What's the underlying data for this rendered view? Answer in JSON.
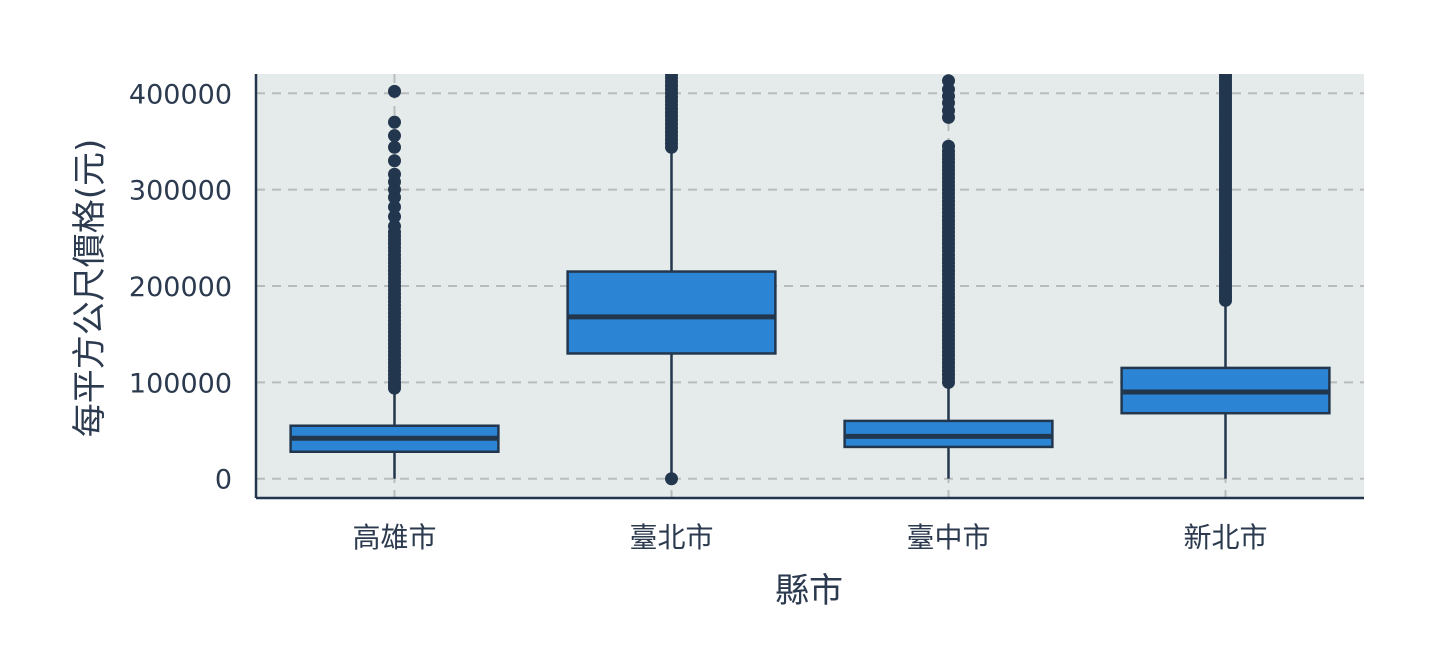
{
  "chart_data": {
    "type": "boxplot",
    "xlabel": "縣市",
    "ylabel": "每平方公尺價格(元)",
    "ylim": [
      -20000,
      420000
    ],
    "yticks": [
      0,
      100000,
      200000,
      300000,
      400000
    ],
    "grid": true,
    "colors": {
      "box": "#2c84d4",
      "line": "#22364d",
      "plot_bg": "#e5eaea",
      "grid": "#b8bcbc"
    },
    "categories": [
      "高雄市",
      "臺北市",
      "臺中市",
      "新北市"
    ],
    "boxes": [
      {
        "category": "高雄市",
        "q1": 28000,
        "median": 42000,
        "q3": 55000,
        "whisker_low": 0,
        "whisker_high": 92000,
        "outliers": [
          94000,
          97000,
          100000,
          104000,
          108000,
          112000,
          116000,
          120000,
          124000,
          128000,
          132000,
          136000,
          140000,
          144000,
          148000,
          152000,
          156000,
          160000,
          164000,
          168000,
          172000,
          176000,
          180000,
          184000,
          188000,
          192000,
          196000,
          200000,
          204000,
          208000,
          212000,
          216000,
          220000,
          224000,
          228000,
          232000,
          236000,
          240000,
          244000,
          248000,
          252000,
          256000,
          262000,
          272000,
          282000,
          292000,
          300000,
          308000,
          316000,
          330000,
          344000,
          356000,
          370000,
          402000
        ]
      },
      {
        "category": "臺北市",
        "q1": 130000,
        "median": 168000,
        "q3": 215000,
        "whisker_low": 0,
        "whisker_high": 342000,
        "outliers": [
          0,
          344000,
          348000,
          352000,
          356000,
          360000,
          364000,
          368000,
          372000,
          376000,
          380000,
          384000,
          388000,
          392000,
          396000,
          400000,
          404000,
          408000,
          412000,
          416000,
          420000
        ]
      },
      {
        "category": "臺中市",
        "q1": 33000,
        "median": 44000,
        "q3": 60000,
        "whisker_low": 0,
        "whisker_high": 98000,
        "outliers": [
          100000,
          104000,
          108000,
          112000,
          116000,
          120000,
          124000,
          128000,
          132000,
          136000,
          140000,
          144000,
          148000,
          152000,
          156000,
          160000,
          164000,
          168000,
          172000,
          176000,
          180000,
          184000,
          188000,
          192000,
          196000,
          200000,
          204000,
          208000,
          212000,
          216000,
          220000,
          224000,
          228000,
          232000,
          236000,
          240000,
          244000,
          248000,
          252000,
          256000,
          260000,
          264000,
          268000,
          272000,
          276000,
          280000,
          284000,
          288000,
          292000,
          296000,
          300000,
          304000,
          308000,
          312000,
          316000,
          320000,
          324000,
          328000,
          332000,
          336000,
          340000,
          345000,
          375000,
          382000,
          390000,
          397000,
          404000,
          413000
        ]
      },
      {
        "category": "新北市",
        "q1": 68000,
        "median": 90000,
        "q3": 115000,
        "whisker_low": 0,
        "whisker_high": 183000,
        "outliers": [
          185000,
          188000,
          191000,
          194000,
          197000,
          200000,
          203000,
          206000,
          209000,
          212000,
          215000,
          218000,
          221000,
          224000,
          227000,
          230000,
          233000,
          236000,
          239000,
          242000,
          245000,
          248000,
          251000,
          254000,
          257000,
          260000,
          263000,
          266000,
          269000,
          272000,
          275000,
          278000,
          281000,
          284000,
          287000,
          290000,
          293000,
          296000,
          299000,
          302000,
          305000,
          308000,
          311000,
          314000,
          317000,
          320000,
          323000,
          326000,
          329000,
          332000,
          335000,
          338000,
          341000,
          344000,
          347000,
          350000,
          353000,
          356000,
          359000,
          362000,
          365000,
          368000,
          371000,
          374000,
          377000,
          380000,
          383000,
          386000,
          389000,
          392000,
          395000,
          398000,
          401000,
          404000,
          407000,
          410000,
          413000,
          416000,
          419000
        ]
      }
    ]
  }
}
